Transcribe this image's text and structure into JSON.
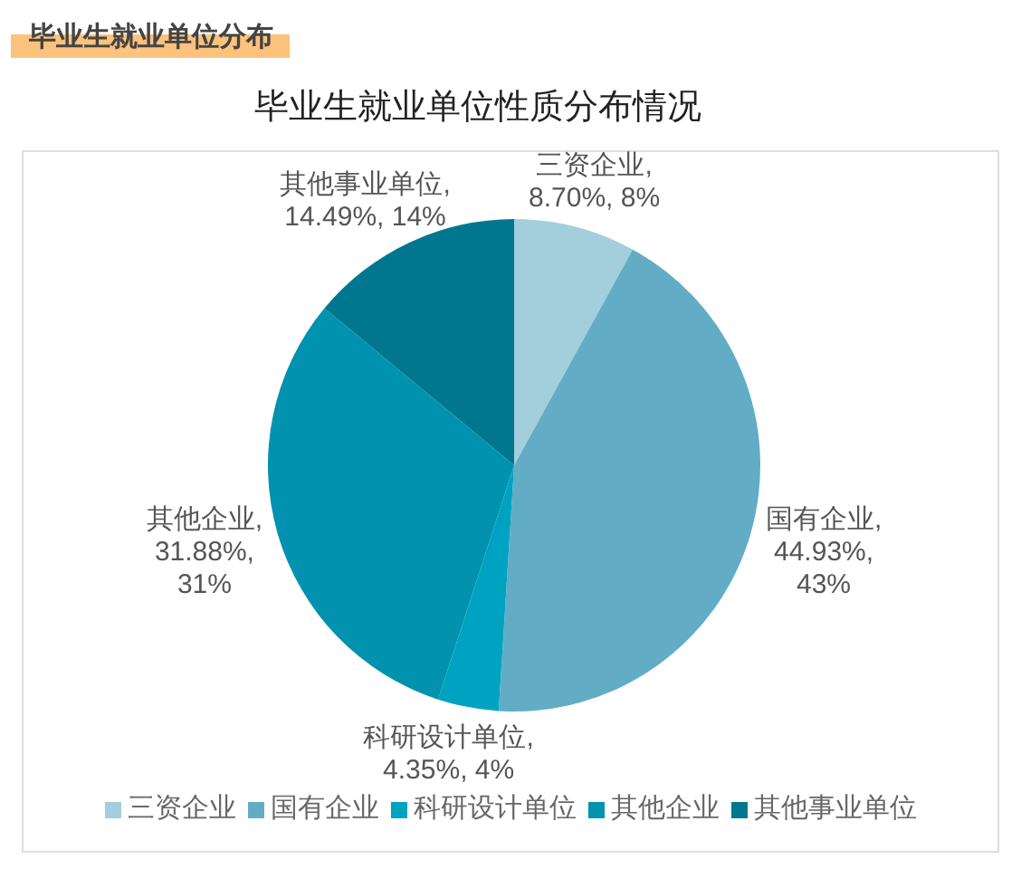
{
  "chart_data": {
    "type": "pie",
    "title": "毕业生就业单位分布",
    "subtitle": "毕业生就业单位性质分布情况",
    "categories": [
      "三资企业",
      "国有企业",
      "科研设计单位",
      "其他企业",
      "其他事业单位"
    ],
    "values": [
      8,
      43,
      4,
      31,
      14
    ],
    "colors": [
      "#a3cedc",
      "#62adc5",
      "#00a2c2",
      "#0092ae",
      "#00778f"
    ],
    "value_labels": [
      "三资企业, 8.70%, 8%",
      "国有企业, 44.93%, 43%",
      "科研设计单位, 4.35%, 4%",
      "其他企业, 31.88%, 31%",
      "其他事业单位, 14.49%, 14%"
    ],
    "legend": "bottom"
  }
}
